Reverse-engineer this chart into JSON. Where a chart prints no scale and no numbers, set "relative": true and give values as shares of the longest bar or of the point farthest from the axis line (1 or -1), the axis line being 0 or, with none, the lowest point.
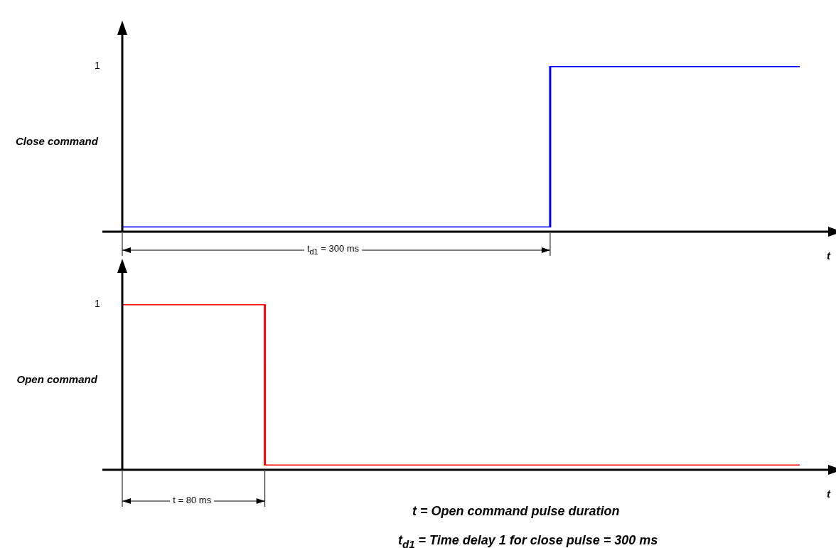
{
  "chart_data": [
    {
      "type": "step",
      "relative": true,
      "ylabel": "Close command",
      "xlabel": "t",
      "categories": [
        null,
        null,
        null,
        null,
        null,
        null,
        null,
        null,
        null,
        null,
        null,
        null,
        null,
        null,
        null,
        null,
        null,
        null,
        null,
        null
      ],
      "series": [
        {
          "color": "#0000ff",
          "values": [
            0,
            0,
            0,
            0,
            0,
            0,
            0,
            0,
            0,
            0,
            0,
            0,
            1,
            1,
            1,
            1,
            1,
            1,
            1,
            1
          ]
        }
      ],
      "annotations": [
        "1",
        "t$_{d1}$ = 300 ms"
      ]
    },
    {
      "type": "step",
      "relative": true,
      "ylabel": "Open command",
      "xlabel": "t",
      "categories": [
        null,
        null,
        null,
        null,
        null,
        null,
        null,
        null,
        null,
        null,
        null,
        null,
        null,
        null,
        null,
        null,
        null,
        null,
        null,
        null
      ],
      "series": [
        {
          "color": "#ff0000",
          "values": [
            1,
            1,
            1,
            1,
            0,
            0,
            0,
            0,
            0,
            0,
            0,
            0,
            0,
            0,
            0,
            0,
            0,
            0,
            0,
            0
          ]
        }
      ],
      "annotations": [
        "1",
        "t = 80 ms",
        "t = Open command pulse duration",
        "t$_{d1}$ = Time delay 1 for close pulse = 300 ms"
      ]
    }
  ]
}
